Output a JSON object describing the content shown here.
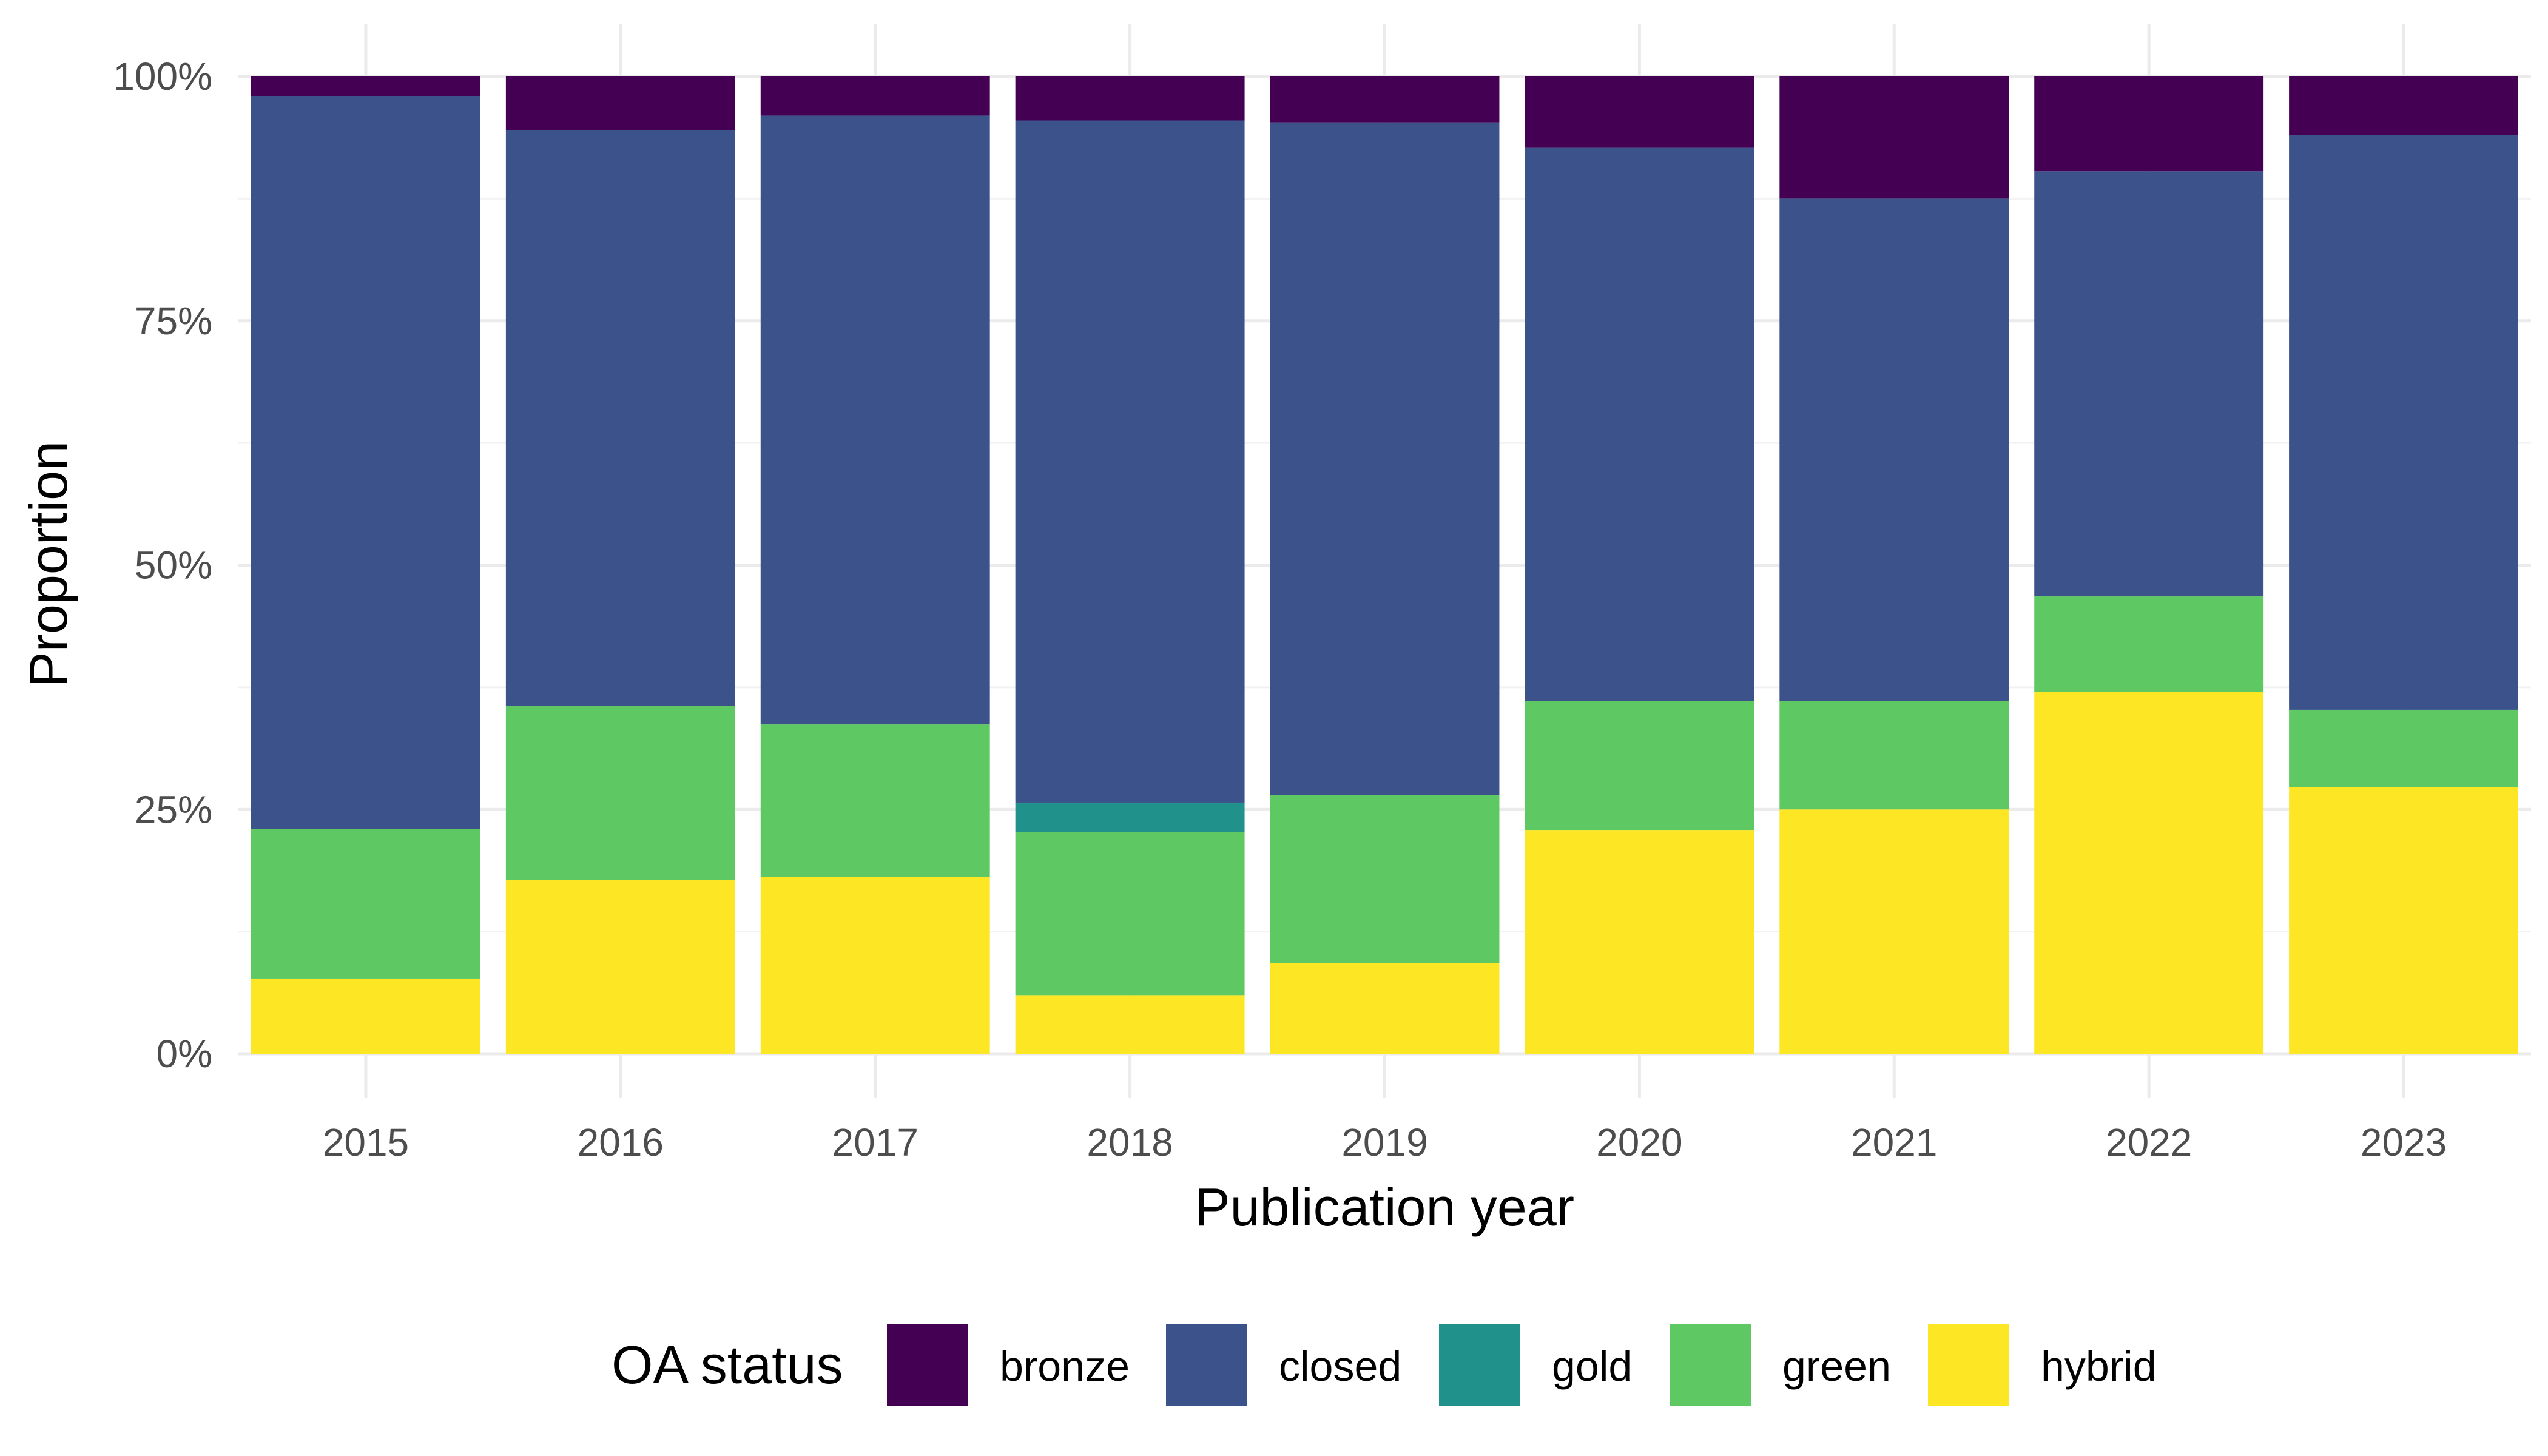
{
  "chart_data": {
    "type": "bar",
    "stacked": true,
    "percent": true,
    "categories": [
      "2015",
      "2016",
      "2017",
      "2018",
      "2019",
      "2020",
      "2021",
      "2022",
      "2023"
    ],
    "series": [
      {
        "name": "hybrid",
        "color": "#fde725",
        "values": [
          7.7,
          17.8,
          18.1,
          6.0,
          9.3,
          22.9,
          25.0,
          37.0,
          27.3
        ]
      },
      {
        "name": "green",
        "color": "#5ec962",
        "values": [
          15.3,
          17.8,
          15.6,
          16.7,
          17.2,
          13.2,
          11.1,
          9.8,
          7.9
        ]
      },
      {
        "name": "gold",
        "color": "#21918c",
        "values": [
          0,
          0,
          0,
          3.0,
          0,
          0,
          0,
          0,
          0
        ]
      },
      {
        "name": "closed",
        "color": "#3b528b",
        "values": [
          75.0,
          58.9,
          62.3,
          69.8,
          68.8,
          56.6,
          51.4,
          43.5,
          58.8
        ]
      },
      {
        "name": "bronze",
        "color": "#440154",
        "values": [
          2.0,
          5.5,
          4.0,
          4.5,
          4.7,
          7.3,
          12.5,
          9.7,
          6.0
        ]
      }
    ],
    "xlabel": "Publication year",
    "ylabel": "Proportion",
    "ylim": [
      0,
      100
    ],
    "yticks": [
      "0%",
      "25%",
      "50%",
      "75%",
      "100%"
    ],
    "grid": true,
    "legend": {
      "title": "OA status",
      "position": "bottom",
      "entries": [
        {
          "label": "bronze",
          "color": "#440154"
        },
        {
          "label": "closed",
          "color": "#3b528b"
        },
        {
          "label": "gold",
          "color": "#21918c"
        },
        {
          "label": "green",
          "color": "#5ec962"
        },
        {
          "label": "hybrid",
          "color": "#fde725"
        }
      ]
    }
  }
}
